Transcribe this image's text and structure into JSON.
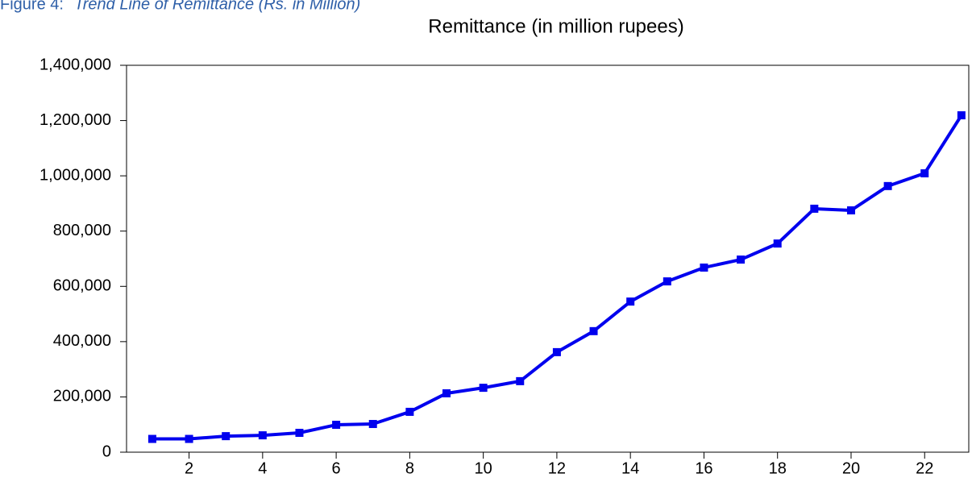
{
  "caption": {
    "label": "Figure 4:",
    "text": "Trend Line of Remittance (Rs. in Million)"
  },
  "chart_data": {
    "type": "line",
    "title": "Remittance (in million rupees)",
    "x": [
      1,
      2,
      3,
      4,
      5,
      6,
      7,
      8,
      9,
      10,
      11,
      12,
      13,
      14,
      15,
      16,
      17,
      18,
      19,
      20,
      21,
      22,
      23
    ],
    "series": [
      {
        "name": "Remittance",
        "color": "#0000ee",
        "values": [
          48000,
          48000,
          58000,
          61000,
          70000,
          99000,
          102000,
          146000,
          213000,
          233000,
          257000,
          362000,
          438000,
          545000,
          618000,
          668000,
          697000,
          755000,
          881000,
          875000,
          963000,
          1009000,
          1219000
        ]
      }
    ],
    "xlim": [
      0.3,
      23.2
    ],
    "xticks": [
      2,
      4,
      6,
      8,
      10,
      12,
      14,
      16,
      18,
      20,
      22
    ],
    "ylim": [
      0,
      1400000
    ],
    "yticks": [
      0,
      {
        "value": 200000,
        "label": "200,000"
      },
      {
        "value": 400000,
        "label": "400,000"
      },
      {
        "value": 600000,
        "label": "600,000"
      },
      {
        "value": 800000,
        "label": "800,000"
      },
      {
        "value": 1000000,
        "label": "1,000,000"
      },
      {
        "value": 1200000,
        "label": "1,200,000"
      },
      {
        "value": 1400000,
        "label": "1,400,000"
      }
    ],
    "grid": false
  }
}
